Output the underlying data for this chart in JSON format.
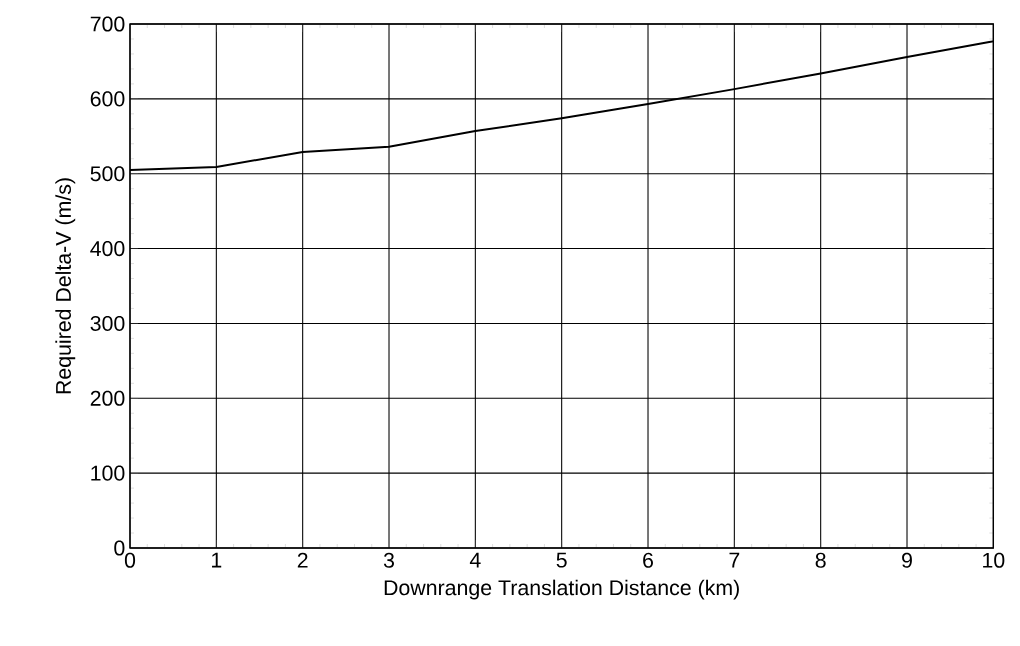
{
  "chart_data": {
    "type": "line",
    "xlabel": "Downrange Translation Distance (km)",
    "ylabel": "Required Delta-V (m/s)",
    "x": [
      0,
      1,
      2,
      3,
      4,
      5,
      6,
      7,
      8,
      9,
      10
    ],
    "values": [
      505,
      509,
      529,
      536,
      557,
      574,
      593,
      613,
      634,
      656,
      677
    ],
    "color": "#000000",
    "xlim": [
      0,
      10
    ],
    "xticks": [
      0,
      1,
      2,
      3,
      4,
      5,
      6,
      7,
      8,
      9,
      10
    ],
    "ylim": [
      0,
      700
    ],
    "yticks": [
      0,
      100,
      200,
      300,
      400,
      500,
      600,
      700
    ],
    "grid": true,
    "marker": "none",
    "line_style": "solid"
  }
}
